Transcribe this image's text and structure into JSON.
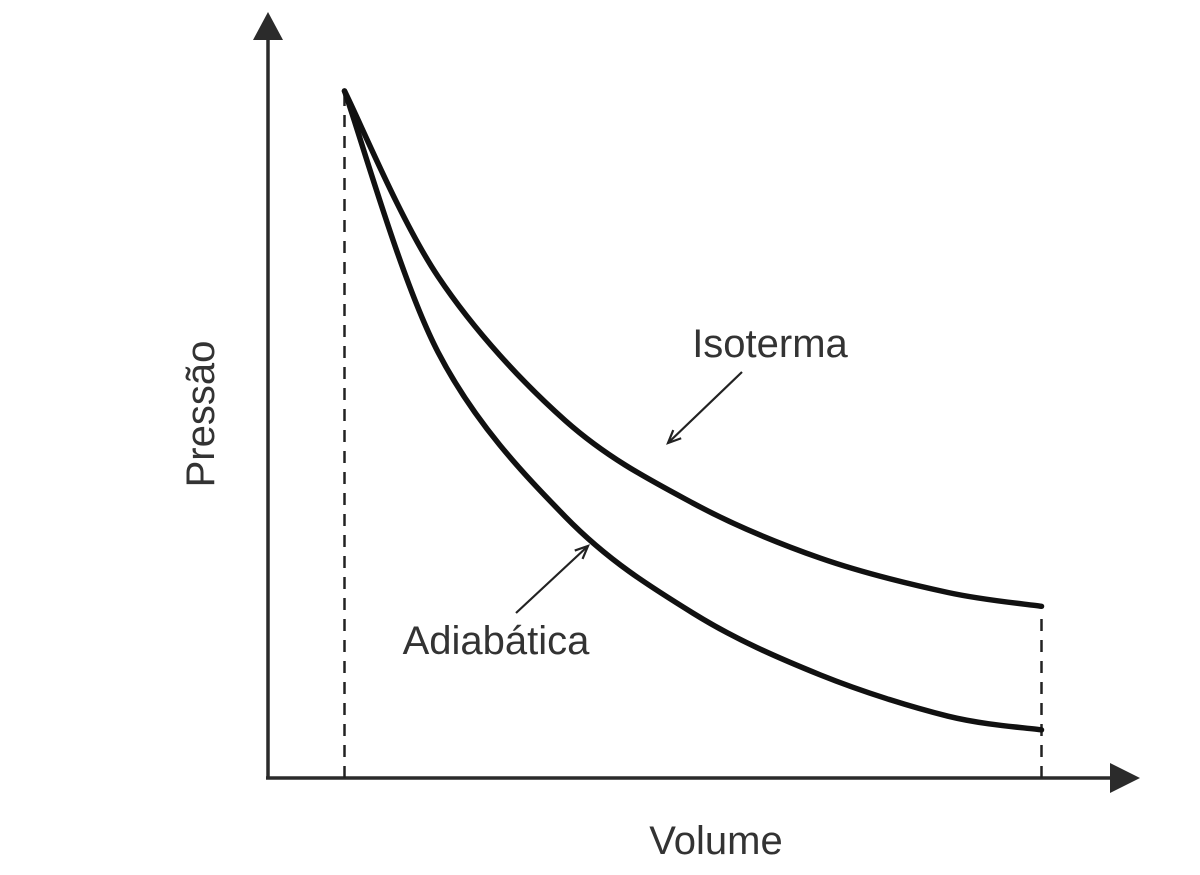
{
  "chart_data": {
    "type": "line",
    "title": "",
    "xlabel": "Volume",
    "ylabel": "Pressão",
    "xlim": [
      0,
      1
    ],
    "ylim": [
      0,
      1
    ],
    "grid": false,
    "ticks": false,
    "series": [
      {
        "name": "Isoterma",
        "x": [
          0.09,
          0.2,
          0.35,
          0.5,
          0.65,
          0.8,
          0.91
        ],
        "y": [
          1.0,
          0.73,
          0.52,
          0.4,
          0.32,
          0.27,
          0.25
        ]
      },
      {
        "name": "Adiabática",
        "x": [
          0.09,
          0.2,
          0.35,
          0.5,
          0.65,
          0.8,
          0.91
        ],
        "y": [
          1.0,
          0.62,
          0.38,
          0.24,
          0.15,
          0.09,
          0.07
        ]
      }
    ],
    "vlines": [
      0.09,
      0.91
    ],
    "annotations": [
      {
        "text": "Isoterma",
        "series": "Isoterma"
      },
      {
        "text": "Adiabática",
        "series": "Adiabática"
      }
    ]
  }
}
